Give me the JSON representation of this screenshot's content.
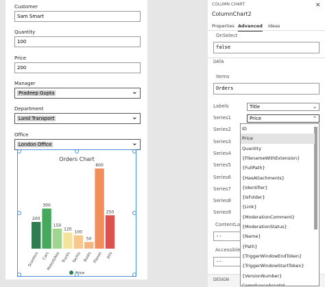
{
  "form": {
    "fields": [
      {
        "label": "Customer",
        "value": "Sam Smart"
      },
      {
        "label": "Quantity",
        "value": "100"
      },
      {
        "label": "Price",
        "value": "200"
      },
      {
        "label": "Manager",
        "value": "Pradeep Gupta"
      },
      {
        "label": "Department",
        "value": "Land Transport"
      },
      {
        "label": "Office",
        "value": "London Office"
      }
    ]
  },
  "chart_data": {
    "type": "bar",
    "title": "Orders Chart",
    "categories": [
      "Scooters",
      "Cars",
      "Motorbikes",
      "Trucks",
      "Yachts",
      "Boats",
      "Planes",
      "Jets"
    ],
    "series": [
      {
        "name": "Price",
        "color": "#2f7d4e",
        "colors": [
          "#2f7d4e",
          "#46a85a",
          "#9ed68f",
          "#f3e49a",
          "#f6c88b",
          "#f5b57f",
          "#f28e5b",
          "#d9534f"
        ],
        "values": [
          200,
          300,
          150,
          120,
          100,
          50,
          600,
          250
        ]
      }
    ]
  },
  "panel": {
    "kind": "COLUMN CHART",
    "name": "ColumnChart2",
    "tabs": [
      "Properties",
      "Advanced",
      "Ideas"
    ],
    "onselect_label": "OnSelect",
    "onselect": "false",
    "section": "DATA",
    "items_label": "Items",
    "items": "Orders",
    "labels_label": "Labels",
    "labels": "Title",
    "series_labels": [
      "Series1",
      "Series2",
      "Series3",
      "Series4",
      "Series5",
      "Series6",
      "Series7",
      "Series8",
      "Series9"
    ],
    "series1": "Price",
    "dropdown": [
      "ID",
      "Price",
      "Quantity",
      "{FilenameWithExtension}",
      "{FullPath}",
      "{HasAttachments}",
      "{Identifier}",
      "{IsFolder}",
      "{Link}",
      "{ModerationComment}",
      "{ModerationStatus}",
      "{Name}",
      "{Path}",
      "{TriggerWindowEndToken}",
      "{TriggerWindowStartToken}",
      "{VersionNumber}",
      "ComplianceAssetId"
    ],
    "content_label": "ContentLanguage",
    "content": "--",
    "accessible_label": "AccessibleLabel",
    "accessible": "--",
    "design": "DESIGN"
  }
}
